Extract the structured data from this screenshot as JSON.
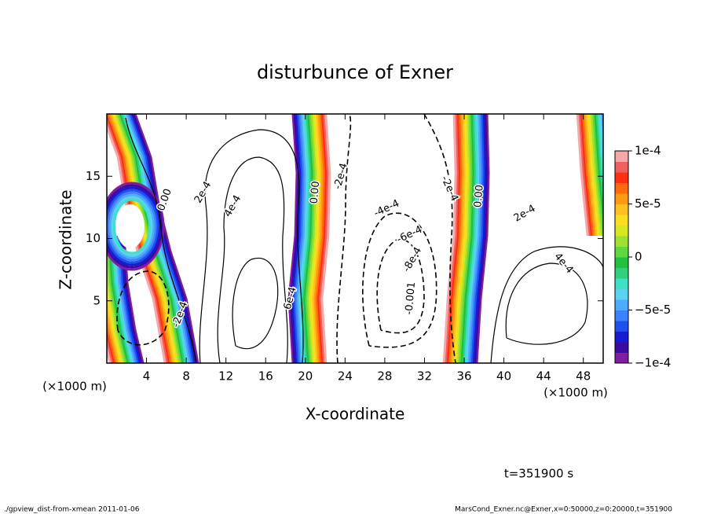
{
  "chart_data": {
    "type": "contour",
    "title": "disturbunce of Exner",
    "xlabel": "X-coordinate",
    "ylabel": "Z-coordinate",
    "x_unit": "(×1000 m)",
    "xlim": [
      0,
      50
    ],
    "ylim": [
      0,
      20
    ],
    "xticks": [
      4,
      8,
      12,
      16,
      20,
      24,
      28,
      32,
      36,
      40,
      44,
      48
    ],
    "yticks": [
      5,
      10,
      15
    ],
    "colorbar": {
      "lim": [
        -0.0001,
        0.0001
      ],
      "ticks": [
        {
          "value": -0.0001,
          "label": "−1e-4"
        },
        {
          "value": -5e-05,
          "label": "−5e-5"
        },
        0,
        {
          "value": 5e-05,
          "label": "5e-5"
        },
        {
          "value": 0.0001,
          "label": "1e-4"
        }
      ],
      "colors": [
        "#7f1fa0",
        "#3c0aa0",
        "#1a1ad0",
        "#1e50f0",
        "#3c82ff",
        "#50aaff",
        "#5ad2f0",
        "#40e0c8",
        "#30d080",
        "#20c040",
        "#60d840",
        "#a0e030",
        "#d8e820",
        "#f8e020",
        "#ffc020",
        "#ff9a10",
        "#ff6a10",
        "#ff3010",
        "#f06060",
        "#f4a8a8"
      ]
    },
    "contour_labels": [
      {
        "x": 5.85,
        "y": 13.1,
        "value": 0,
        "label": "0.00"
      },
      {
        "x": 9.7,
        "y": 13.7,
        "value": 0.0002,
        "label": "2e-4"
      },
      {
        "x": 12.7,
        "y": 12.6,
        "value": 0.0004,
        "label": "4e-4"
      },
      {
        "x": 18.5,
        "y": 5.2,
        "value": 0.0006,
        "label": "6e-4"
      },
      {
        "x": 21,
        "y": 13.7,
        "value": 0,
        "label": "0.00"
      },
      {
        "x": 23.6,
        "y": 15,
        "value": -0.0002,
        "label": "-2e-4"
      },
      {
        "x": 28.2,
        "y": 12.4,
        "value": -0.0004,
        "label": "-4e-4"
      },
      {
        "x": 30.5,
        "y": 10.3,
        "value": -0.0006,
        "label": "-6e-4"
      },
      {
        "x": 30.8,
        "y": 8.3,
        "value": -0.0008,
        "label": "-8e-4"
      },
      {
        "x": 30.6,
        "y": 5.2,
        "value": -0.001,
        "label": "-0.001"
      },
      {
        "x": 34.5,
        "y": 14,
        "value": -0.0002,
        "label": "-2e-4"
      },
      {
        "x": 37.5,
        "y": 13.4,
        "value": 0,
        "label": "0.00"
      },
      {
        "x": 42.1,
        "y": 12,
        "value": 0.0002,
        "label": "2e-4"
      },
      {
        "x": 46,
        "y": 8,
        "value": 0.0004,
        "label": "4e-4"
      },
      {
        "x": 7.4,
        "y": 3.9,
        "value": -0.0002,
        "label": "-2e-4"
      }
    ],
    "time_label": "t=351900 s",
    "footer_left": "./gpview_dist-from-xmean  2011-01-06",
    "footer_right": "MarsCond_Exner.nc@Exner,x=0:50000,z=0:20000,t=351900"
  }
}
